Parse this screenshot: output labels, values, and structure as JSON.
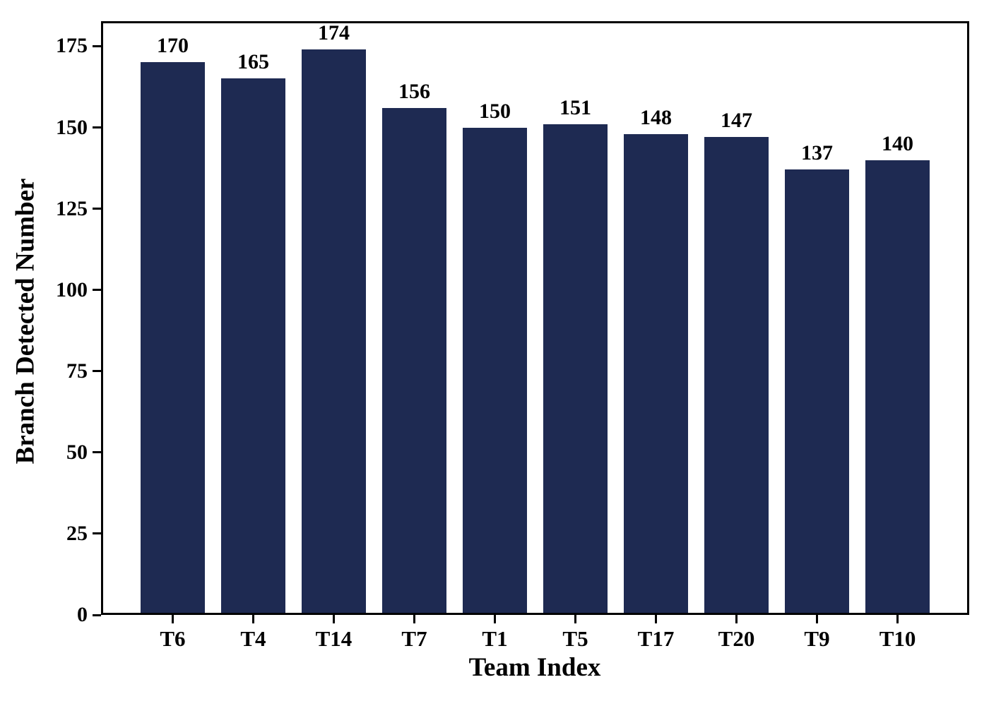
{
  "chart_data": {
    "type": "bar",
    "categories": [
      "T6",
      "T4",
      "T14",
      "T7",
      "T1",
      "T5",
      "T17",
      "T20",
      "T9",
      "T10"
    ],
    "values": [
      170,
      165,
      174,
      156,
      150,
      151,
      148,
      147,
      137,
      140
    ],
    "bar_labels": [
      "170",
      "165",
      "174",
      "156",
      "150",
      "151",
      "148",
      "147",
      "137",
      "140"
    ],
    "xlabel": "Team Index",
    "ylabel": "Branch Detected Number",
    "yticks": [
      0,
      25,
      50,
      75,
      100,
      125,
      150,
      175
    ],
    "ylim": [
      0,
      182.7
    ],
    "grid": false,
    "legend": "none",
    "bar_color": "#1e2a52",
    "axis_color": "#000000",
    "background": "#ffffff"
  }
}
